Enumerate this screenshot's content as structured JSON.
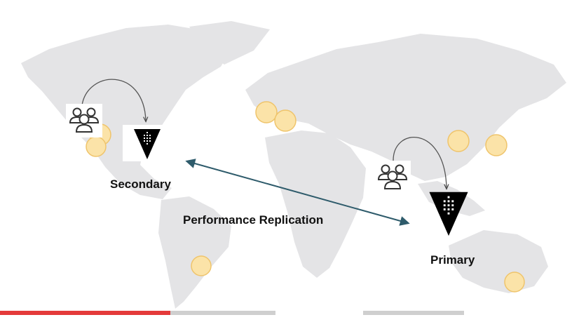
{
  "diagram": {
    "secondary_label": "Secondary",
    "primary_label": "Primary",
    "replication_label": "Performance Replication"
  },
  "icons": {
    "users": "users-group-icon",
    "vault": "vault-triangle-icon",
    "location": "location-dot-icon"
  },
  "colors": {
    "map": "#e4e4e6",
    "location_dot_fill": "#fbe3a8",
    "location_dot_stroke": "#efc46b",
    "replication_arrow": "#2e5b6b",
    "vault_black": "#000000",
    "progress_played": "#e43a3a",
    "progress_buffered": "#cfcfcf"
  },
  "video_progress": {
    "played_fraction": 0.295
  }
}
